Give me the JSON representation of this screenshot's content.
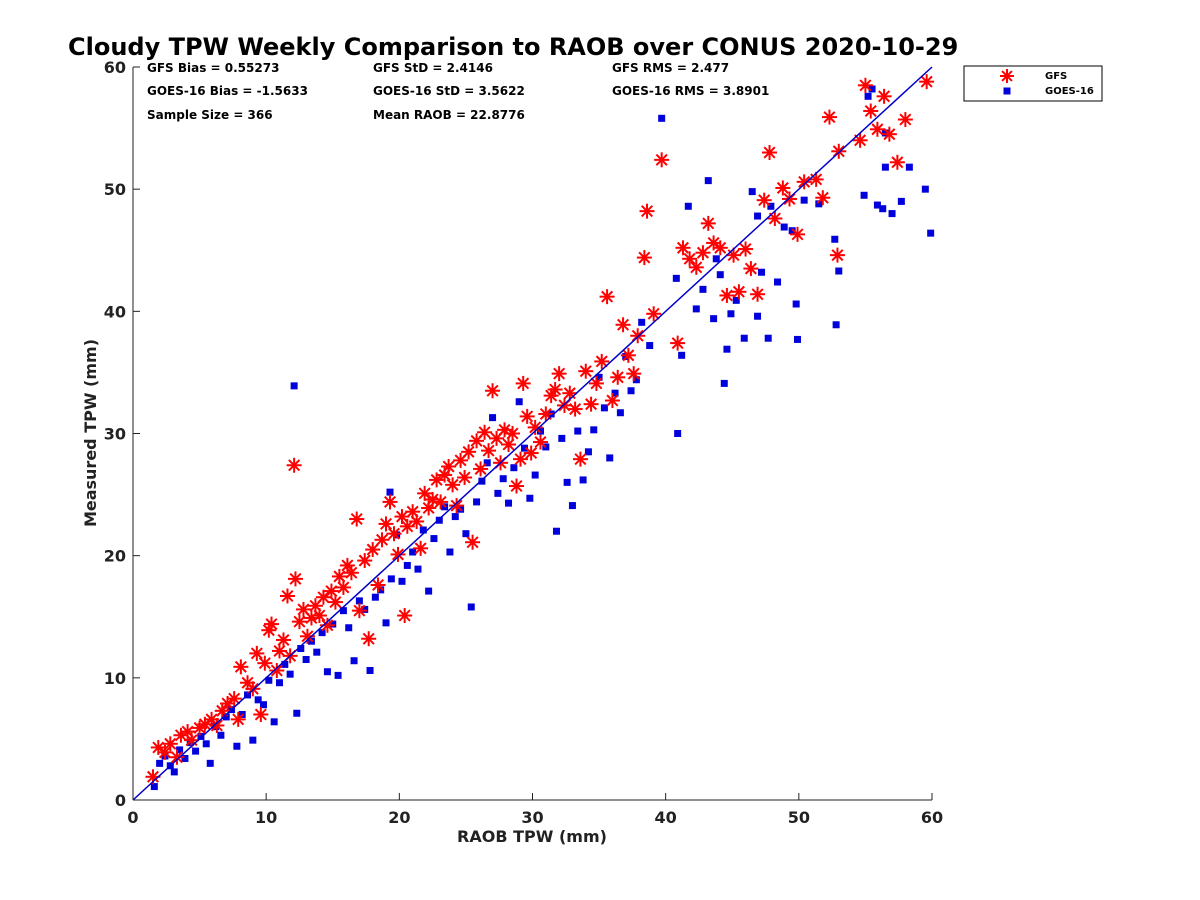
{
  "chart_data": {
    "type": "scatter",
    "title": "Cloudy TPW Weekly Comparison to RAOB over CONUS 2020-10-29",
    "xlabel": "RAOB TPW (mm)",
    "ylabel": "Measured TPW (mm)",
    "xlim": [
      0,
      60
    ],
    "ylim": [
      0,
      60
    ],
    "xticks": [
      "0",
      "10",
      "20",
      "30",
      "40",
      "50",
      "60"
    ],
    "yticks": [
      "0",
      "10",
      "20",
      "30",
      "40",
      "50",
      "60"
    ],
    "grid": false,
    "legend_position": "outside-top-right",
    "reference_line": {
      "x": [
        0,
        60
      ],
      "y": [
        0,
        60
      ],
      "color": "#0000cc"
    },
    "stats": [
      {
        "text": "GFS Bias = 0.55273",
        "col": 0,
        "row": 0
      },
      {
        "text": "GFS StD = 2.4146",
        "col": 1,
        "row": 0
      },
      {
        "text": "GFS RMS = 2.477",
        "col": 2,
        "row": 0
      },
      {
        "text": "GOES-16 Bias = -1.5633",
        "col": 0,
        "row": 1
      },
      {
        "text": "GOES-16 StD = 3.5622",
        "col": 1,
        "row": 1
      },
      {
        "text": "GOES-16 RMS = 3.8901",
        "col": 2,
        "row": 1
      },
      {
        "text": "Sample Size = 366",
        "col": 0,
        "row": 2
      },
      {
        "text": "Mean RAOB = 22.8776",
        "col": 1,
        "row": 2
      }
    ],
    "series": [
      {
        "name": "GFS",
        "marker": "asterisk",
        "color": "#ff0000",
        "points": [
          [
            1.5,
            1.9
          ],
          [
            1.9,
            4.3
          ],
          [
            2.4,
            3.9
          ],
          [
            2.8,
            4.6
          ],
          [
            3.3,
            3.5
          ],
          [
            3.6,
            5.3
          ],
          [
            4.1,
            5.6
          ],
          [
            4.4,
            4.9
          ],
          [
            5.0,
            5.9
          ],
          [
            5.4,
            6.2
          ],
          [
            5.9,
            6.6
          ],
          [
            6.3,
            6.1
          ],
          [
            6.7,
            7.3
          ],
          [
            7.1,
            7.9
          ],
          [
            7.6,
            8.3
          ],
          [
            7.9,
            6.6
          ],
          [
            8.1,
            10.9
          ],
          [
            8.6,
            9.6
          ],
          [
            9.0,
            9.1
          ],
          [
            9.3,
            12.0
          ],
          [
            9.6,
            7.0
          ],
          [
            9.9,
            11.2
          ],
          [
            10.2,
            13.9
          ],
          [
            10.4,
            14.4
          ],
          [
            10.8,
            10.6
          ],
          [
            11.0,
            12.2
          ],
          [
            11.3,
            13.1
          ],
          [
            11.6,
            16.7
          ],
          [
            11.8,
            11.8
          ],
          [
            12.1,
            27.4
          ],
          [
            12.2,
            18.1
          ],
          [
            12.5,
            14.6
          ],
          [
            12.8,
            15.6
          ],
          [
            13.1,
            13.4
          ],
          [
            13.4,
            14.9
          ],
          [
            13.7,
            15.9
          ],
          [
            14.0,
            15.1
          ],
          [
            14.3,
            16.6
          ],
          [
            14.6,
            14.3
          ],
          [
            14.9,
            17.1
          ],
          [
            15.2,
            16.2
          ],
          [
            15.5,
            18.3
          ],
          [
            15.8,
            17.4
          ],
          [
            16.1,
            19.2
          ],
          [
            16.4,
            18.6
          ],
          [
            16.8,
            23.0
          ],
          [
            17.0,
            15.5
          ],
          [
            17.4,
            19.6
          ],
          [
            17.7,
            13.2
          ],
          [
            18.0,
            20.5
          ],
          [
            18.4,
            17.6
          ],
          [
            18.7,
            21.3
          ],
          [
            19.0,
            22.6
          ],
          [
            19.3,
            24.4
          ],
          [
            19.6,
            21.8
          ],
          [
            19.9,
            20.1
          ],
          [
            20.2,
            23.2
          ],
          [
            20.4,
            15.1
          ],
          [
            20.6,
            22.4
          ],
          [
            21.0,
            23.6
          ],
          [
            21.3,
            22.8
          ],
          [
            21.6,
            20.6
          ],
          [
            21.9,
            25.1
          ],
          [
            22.2,
            23.9
          ],
          [
            22.5,
            24.6
          ],
          [
            22.8,
            26.2
          ],
          [
            23.1,
            24.4
          ],
          [
            23.4,
            26.6
          ],
          [
            23.7,
            27.3
          ],
          [
            24.0,
            25.8
          ],
          [
            24.3,
            24.1
          ],
          [
            24.6,
            27.8
          ],
          [
            24.9,
            26.4
          ],
          [
            25.2,
            28.5
          ],
          [
            25.5,
            21.1
          ],
          [
            25.8,
            29.4
          ],
          [
            26.1,
            27.1
          ],
          [
            26.4,
            30.1
          ],
          [
            26.7,
            28.6
          ],
          [
            27.0,
            33.5
          ],
          [
            27.3,
            29.6
          ],
          [
            27.6,
            27.6
          ],
          [
            27.9,
            30.3
          ],
          [
            28.2,
            29.1
          ],
          [
            28.5,
            30.0
          ],
          [
            28.8,
            25.7
          ],
          [
            29.1,
            27.9
          ],
          [
            29.3,
            34.1
          ],
          [
            29.6,
            31.4
          ],
          [
            29.9,
            28.4
          ],
          [
            30.2,
            30.5
          ],
          [
            30.6,
            29.3
          ],
          [
            31.0,
            31.6
          ],
          [
            31.4,
            33.1
          ],
          [
            31.7,
            33.6
          ],
          [
            32.0,
            34.9
          ],
          [
            32.4,
            32.3
          ],
          [
            32.8,
            33.3
          ],
          [
            33.2,
            32.0
          ],
          [
            33.6,
            27.9
          ],
          [
            34.0,
            35.1
          ],
          [
            34.4,
            32.4
          ],
          [
            34.8,
            34.1
          ],
          [
            35.2,
            35.9
          ],
          [
            35.6,
            41.2
          ],
          [
            36.0,
            32.7
          ],
          [
            36.4,
            34.6
          ],
          [
            36.8,
            38.9
          ],
          [
            37.2,
            36.4
          ],
          [
            37.6,
            34.9
          ],
          [
            37.9,
            38.0
          ],
          [
            38.4,
            44.4
          ],
          [
            38.6,
            48.2
          ],
          [
            39.1,
            39.8
          ],
          [
            39.7,
            52.4
          ],
          [
            40.9,
            37.4
          ],
          [
            41.3,
            45.2
          ],
          [
            41.8,
            44.3
          ],
          [
            42.3,
            43.6
          ],
          [
            42.8,
            44.8
          ],
          [
            43.2,
            47.2
          ],
          [
            43.6,
            45.6
          ],
          [
            44.1,
            45.2
          ],
          [
            44.6,
            41.3
          ],
          [
            45.1,
            44.6
          ],
          [
            45.5,
            41.6
          ],
          [
            46.0,
            45.1
          ],
          [
            46.4,
            43.5
          ],
          [
            46.9,
            41.4
          ],
          [
            47.4,
            49.1
          ],
          [
            47.8,
            53.0
          ],
          [
            48.2,
            47.6
          ],
          [
            48.8,
            50.1
          ],
          [
            49.3,
            49.2
          ],
          [
            49.9,
            46.3
          ],
          [
            50.4,
            50.6
          ],
          [
            51.3,
            50.8
          ],
          [
            51.8,
            49.3
          ],
          [
            52.3,
            55.9
          ],
          [
            52.9,
            44.6
          ],
          [
            53.0,
            53.1
          ],
          [
            54.6,
            54.0
          ],
          [
            55.0,
            58.5
          ],
          [
            55.4,
            56.4
          ],
          [
            55.9,
            54.9
          ],
          [
            56.4,
            57.6
          ],
          [
            56.8,
            54.5
          ],
          [
            57.4,
            52.2
          ],
          [
            58.0,
            55.7
          ],
          [
            59.6,
            58.8
          ]
        ]
      },
      {
        "name": "GOES-16",
        "marker": "square",
        "color": "#0000dd",
        "points": [
          [
            1.6,
            1.1
          ],
          [
            2.0,
            3.0
          ],
          [
            2.4,
            3.6
          ],
          [
            2.8,
            2.8
          ],
          [
            3.1,
            2.3
          ],
          [
            3.5,
            4.1
          ],
          [
            3.9,
            3.4
          ],
          [
            4.3,
            4.7
          ],
          [
            4.7,
            4.0
          ],
          [
            5.1,
            5.2
          ],
          [
            5.5,
            4.6
          ],
          [
            5.8,
            3.0
          ],
          [
            6.2,
            6.0
          ],
          [
            6.6,
            5.3
          ],
          [
            7.0,
            6.8
          ],
          [
            7.4,
            7.4
          ],
          [
            7.8,
            4.4
          ],
          [
            8.2,
            7.0
          ],
          [
            8.6,
            8.6
          ],
          [
            9.0,
            4.9
          ],
          [
            9.4,
            8.2
          ],
          [
            9.8,
            7.8
          ],
          [
            10.2,
            9.8
          ],
          [
            10.6,
            6.4
          ],
          [
            11.0,
            9.6
          ],
          [
            11.4,
            11.1
          ],
          [
            11.8,
            10.3
          ],
          [
            12.1,
            33.9
          ],
          [
            12.3,
            7.1
          ],
          [
            12.6,
            12.4
          ],
          [
            13.0,
            11.5
          ],
          [
            13.4,
            13.0
          ],
          [
            13.8,
            12.1
          ],
          [
            14.2,
            13.7
          ],
          [
            14.6,
            10.5
          ],
          [
            15.0,
            14.4
          ],
          [
            15.4,
            10.2
          ],
          [
            15.8,
            15.5
          ],
          [
            16.2,
            14.1
          ],
          [
            16.6,
            11.4
          ],
          [
            17.0,
            16.3
          ],
          [
            17.4,
            15.6
          ],
          [
            17.8,
            10.6
          ],
          [
            18.2,
            16.6
          ],
          [
            18.6,
            17.2
          ],
          [
            19.0,
            14.5
          ],
          [
            19.4,
            18.1
          ],
          [
            19.8,
            21.7
          ],
          [
            20.2,
            17.9
          ],
          [
            20.6,
            19.2
          ],
          [
            21.0,
            20.3
          ],
          [
            21.4,
            18.9
          ],
          [
            21.8,
            22.1
          ],
          [
            22.2,
            17.1
          ],
          [
            22.6,
            21.4
          ],
          [
            23.0,
            22.9
          ],
          [
            23.4,
            24.0
          ],
          [
            23.8,
            20.3
          ],
          [
            24.2,
            23.2
          ],
          [
            24.6,
            23.8
          ],
          [
            25.0,
            21.8
          ],
          [
            25.4,
            15.8
          ],
          [
            25.8,
            24.4
          ],
          [
            26.2,
            26.1
          ],
          [
            26.6,
            27.6
          ],
          [
            27.0,
            31.3
          ],
          [
            27.4,
            25.1
          ],
          [
            27.8,
            26.3
          ],
          [
            28.2,
            24.3
          ],
          [
            28.6,
            27.2
          ],
          [
            29.0,
            32.6
          ],
          [
            29.4,
            28.8
          ],
          [
            29.8,
            24.7
          ],
          [
            30.2,
            26.6
          ],
          [
            30.6,
            30.2
          ],
          [
            31.0,
            28.9
          ],
          [
            31.4,
            31.6
          ],
          [
            31.8,
            22.0
          ],
          [
            32.2,
            29.6
          ],
          [
            32.6,
            26.0
          ],
          [
            33.0,
            24.1
          ],
          [
            33.4,
            30.2
          ],
          [
            33.8,
            26.2
          ],
          [
            34.2,
            28.5
          ],
          [
            34.6,
            30.3
          ],
          [
            35.0,
            34.6
          ],
          [
            35.4,
            32.1
          ],
          [
            35.8,
            28.0
          ],
          [
            36.2,
            33.3
          ],
          [
            36.6,
            31.7
          ],
          [
            37.0,
            36.3
          ],
          [
            37.4,
            33.5
          ],
          [
            37.8,
            34.4
          ],
          [
            38.2,
            39.1
          ],
          [
            38.8,
            37.2
          ],
          [
            39.7,
            55.8
          ],
          [
            40.8,
            42.7
          ],
          [
            40.9,
            30.0
          ],
          [
            41.2,
            36.4
          ],
          [
            41.7,
            48.6
          ],
          [
            42.3,
            40.2
          ],
          [
            42.8,
            41.8
          ],
          [
            43.2,
            50.7
          ],
          [
            43.6,
            39.4
          ],
          [
            44.1,
            43.0
          ],
          [
            44.4,
            34.1
          ],
          [
            44.6,
            36.9
          ],
          [
            44.9,
            39.8
          ],
          [
            45.3,
            40.9
          ],
          [
            45.9,
            37.8
          ],
          [
            46.5,
            49.8
          ],
          [
            46.9,
            39.6
          ],
          [
            47.2,
            43.2
          ],
          [
            47.7,
            37.8
          ],
          [
            47.9,
            48.6
          ],
          [
            48.4,
            42.4
          ],
          [
            48.9,
            46.9
          ],
          [
            49.5,
            46.6
          ],
          [
            49.8,
            40.6
          ],
          [
            49.9,
            37.7
          ],
          [
            50.4,
            49.1
          ],
          [
            51.5,
            48.8
          ],
          [
            52.7,
            45.9
          ],
          [
            52.8,
            38.9
          ],
          [
            53.0,
            43.3
          ],
          [
            54.9,
            49.5
          ],
          [
            55.2,
            57.6
          ],
          [
            55.5,
            58.2
          ],
          [
            55.9,
            48.7
          ],
          [
            56.3,
            48.4
          ],
          [
            56.5,
            51.8
          ],
          [
            56.5,
            54.6
          ],
          [
            57.0,
            48.0
          ],
          [
            57.7,
            49.0
          ],
          [
            58.3,
            51.8
          ],
          [
            59.5,
            50.0
          ],
          [
            59.9,
            46.4
          ],
          [
            43.8,
            44.3
          ],
          [
            46.9,
            47.8
          ],
          [
            19.3,
            25.2
          ]
        ]
      }
    ]
  }
}
